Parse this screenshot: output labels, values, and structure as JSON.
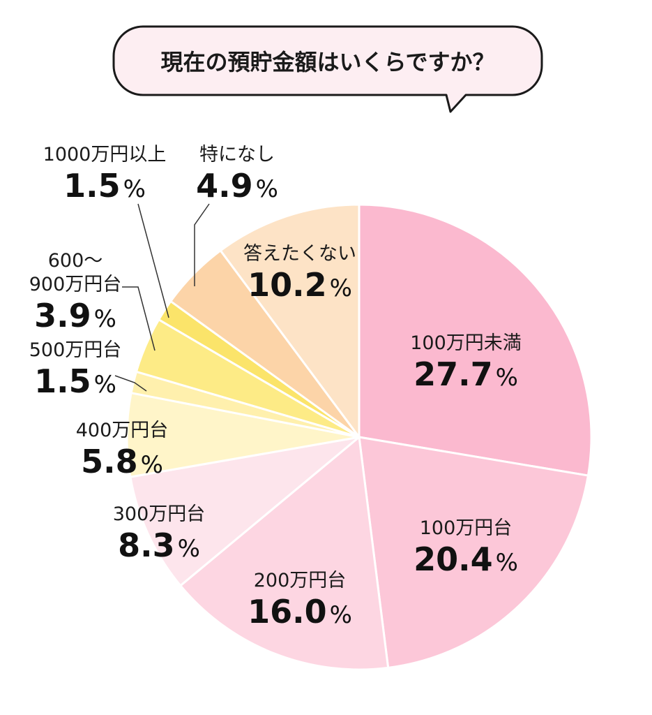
{
  "chart_data": {
    "type": "pie",
    "title": "現在の預貯金額はいくらですか？",
    "unit": "%",
    "slices": [
      {
        "label": "100万円未満",
        "value": 27.7,
        "color": "#fbb9cf"
      },
      {
        "label": "100万円台",
        "value": 20.4,
        "color": "#fcc7d8"
      },
      {
        "label": "200万円台",
        "value": 16.0,
        "color": "#fdd6e2"
      },
      {
        "label": "300万円台",
        "value": 8.3,
        "color": "#fde5ec"
      },
      {
        "label": "400万円台",
        "value": 5.8,
        "color": "#fff5c9"
      },
      {
        "label": "500万円台",
        "value": 1.5,
        "color": "#fff0ad"
      },
      {
        "label": "600～900万円台",
        "value": 3.9,
        "color": "#fdeb86"
      },
      {
        "label": "1000万円以上",
        "value": 1.5,
        "color": "#fbe46a"
      },
      {
        "label": "特になし",
        "value": 4.9,
        "color": "#fcd4a8"
      },
      {
        "label": "答えたくない",
        "value": 10.2,
        "color": "#fde3c6"
      }
    ],
    "value_labels": [
      "27.7",
      "20.4",
      "16.0",
      "8.3",
      "5.8",
      "1.5",
      "3.9",
      "1.5",
      "4.9",
      "10.2"
    ],
    "pct_sign": "%",
    "name_lines": {
      "600～900万円台": [
        "600～",
        "900万円台"
      ]
    },
    "colors": {
      "bubble_fill": "#fdeef2",
      "bubble_stroke": "#1a1a1a",
      "slice_border": "#ffffff",
      "leader": "#333333"
    }
  }
}
